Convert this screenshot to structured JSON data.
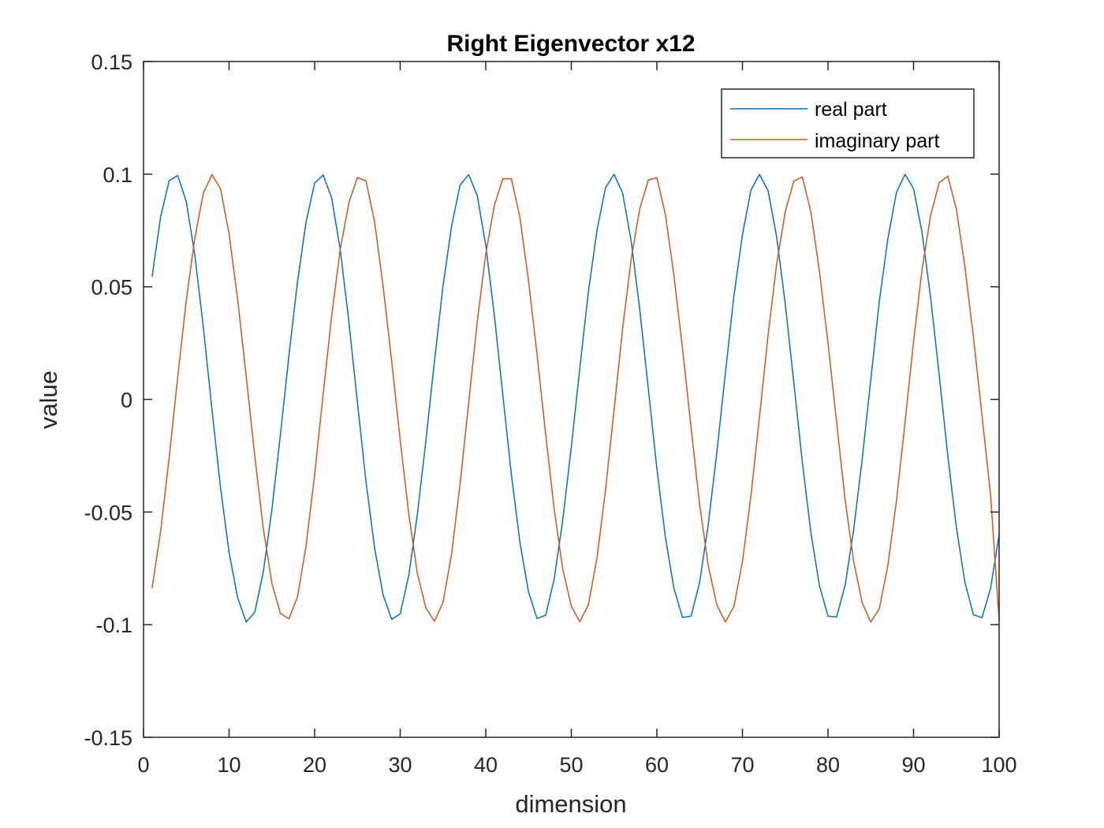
{
  "chart_data": {
    "type": "line",
    "title": "Right Eigenvector x12",
    "xlabel": "dimension",
    "ylabel": "value",
    "xlim": [
      0,
      100
    ],
    "ylim": [
      -0.15,
      0.15
    ],
    "xticks": [
      0,
      10,
      20,
      30,
      40,
      50,
      60,
      70,
      80,
      90,
      100
    ],
    "xtick_labels": [
      "0",
      "10",
      "20",
      "30",
      "40",
      "50",
      "60",
      "70",
      "80",
      "90",
      "100"
    ],
    "yticks": [
      -0.15,
      -0.1,
      -0.05,
      0,
      0.05,
      0.1,
      0.15
    ],
    "ytick_labels": [
      "-0.15",
      "-0.1",
      "-0.05",
      "0",
      "0.05",
      "0.1",
      "0.15"
    ],
    "grid": false,
    "legend_position": "top-right",
    "x": [
      1,
      2,
      3,
      4,
      5,
      6,
      7,
      8,
      9,
      10,
      11,
      12,
      13,
      14,
      15,
      16,
      17,
      18,
      19,
      20,
      21,
      22,
      23,
      24,
      25,
      26,
      27,
      28,
      29,
      30,
      31,
      32,
      33,
      34,
      35,
      36,
      37,
      38,
      39,
      40,
      41,
      42,
      43,
      44,
      45,
      46,
      47,
      48,
      49,
      50,
      51,
      52,
      53,
      54,
      55,
      56,
      57,
      58,
      59,
      60,
      61,
      62,
      63,
      64,
      65,
      66,
      67,
      68,
      69,
      70,
      71,
      72,
      73,
      74,
      75,
      76,
      77,
      78,
      79,
      80,
      81,
      82,
      83,
      84,
      85,
      86,
      87,
      88,
      89,
      90,
      91,
      92,
      93,
      94,
      95,
      96,
      97,
      98,
      99,
      100
    ],
    "series": [
      {
        "name": "real part",
        "color": "#0072bd",
        "values": [
          0.0544,
          0.0811,
          0.0971,
          0.0994,
          0.0878,
          0.064,
          0.0317,
          -0.0044,
          -0.0392,
          -0.0679,
          -0.088,
          -0.0988,
          -0.0945,
          -0.0766,
          -0.049,
          -0.0157,
          0.0196,
          0.0523,
          0.0788,
          0.096,
          0.0996,
          0.0893,
          0.0663,
          0.0346,
          -0.0013,
          -0.0364,
          -0.0658,
          -0.0868,
          -0.0976,
          -0.0952,
          -0.0782,
          -0.0512,
          -0.0184,
          0.0168,
          0.0502,
          0.0768,
          0.0951,
          0.0998,
          0.0906,
          0.0684,
          0.0374,
          0.0018,
          -0.0335,
          -0.0636,
          -0.0855,
          -0.0973,
          -0.0958,
          -0.0798,
          -0.0535,
          -0.0211,
          0.0141,
          0.048,
          0.075,
          0.094,
          0.0999,
          0.0916,
          0.0702,
          0.0399,
          0.0047,
          -0.0307,
          -0.0613,
          -0.084,
          -0.0968,
          -0.0962,
          -0.0812,
          -0.0556,
          -0.0238,
          0.0114,
          0.0458,
          0.0731,
          0.093,
          0.0999,
          0.0926,
          0.0721,
          0.0425,
          0.0077,
          -0.0278,
          -0.0591,
          -0.0826,
          -0.0962,
          -0.0966,
          -0.0826,
          -0.0578,
          -0.0265,
          0.0087,
          0.0436,
          0.0713,
          0.0919,
          0.0999,
          0.0936,
          0.0739,
          0.045,
          0.0107,
          -0.0249,
          -0.0567,
          -0.0811,
          -0.0956,
          -0.0969,
          -0.0839,
          -0.06
        ],
        "values_note_endpoint": ""
      },
      {
        "name": "imaginary part",
        "color": "#d95319",
        "values": [
          -0.0838,
          -0.0586,
          -0.0258,
          0.01,
          0.0441,
          0.0717,
          0.0916,
          0.0998,
          0.0935,
          0.0736,
          0.0445,
          0.0104,
          -0.025,
          -0.0573,
          -0.0815,
          -0.095,
          -0.0974,
          -0.0876,
          -0.065,
          -0.0334,
          0.0025,
          0.0374,
          0.0668,
          0.0873,
          0.0985,
          0.097,
          0.079,
          0.0504,
          0.0171,
          -0.0181,
          -0.0508,
          -0.0771,
          -0.0925,
          -0.0985,
          -0.0902,
          -0.0688,
          -0.0375,
          -0.0017,
          0.0343,
          0.0646,
          0.086,
          0.098,
          0.0979,
          0.0806,
          0.0526,
          0.0198,
          -0.0154,
          -0.0488,
          -0.0754,
          -0.0918,
          -0.0987,
          -0.0911,
          -0.0705,
          -0.0401,
          -0.0046,
          0.0315,
          0.0624,
          0.0847,
          0.0974,
          0.0984,
          0.082,
          0.0548,
          0.0225,
          -0.0126,
          -0.0467,
          -0.0737,
          -0.0911,
          -0.0988,
          -0.092,
          -0.0721,
          -0.0426,
          -0.0075,
          0.0286,
          0.0601,
          0.0833,
          0.0968,
          0.0988,
          0.0833,
          0.0569,
          0.0251,
          -0.0099,
          -0.0446,
          -0.0719,
          -0.0903,
          -0.0988,
          -0.0929,
          -0.0737,
          -0.045,
          -0.0104,
          0.0257,
          0.0578,
          0.0818,
          0.0962,
          0.0991,
          0.0846,
          0.0589,
          0.0277,
          -0.0071,
          -0.0424,
          -0.098
        ]
      }
    ]
  }
}
